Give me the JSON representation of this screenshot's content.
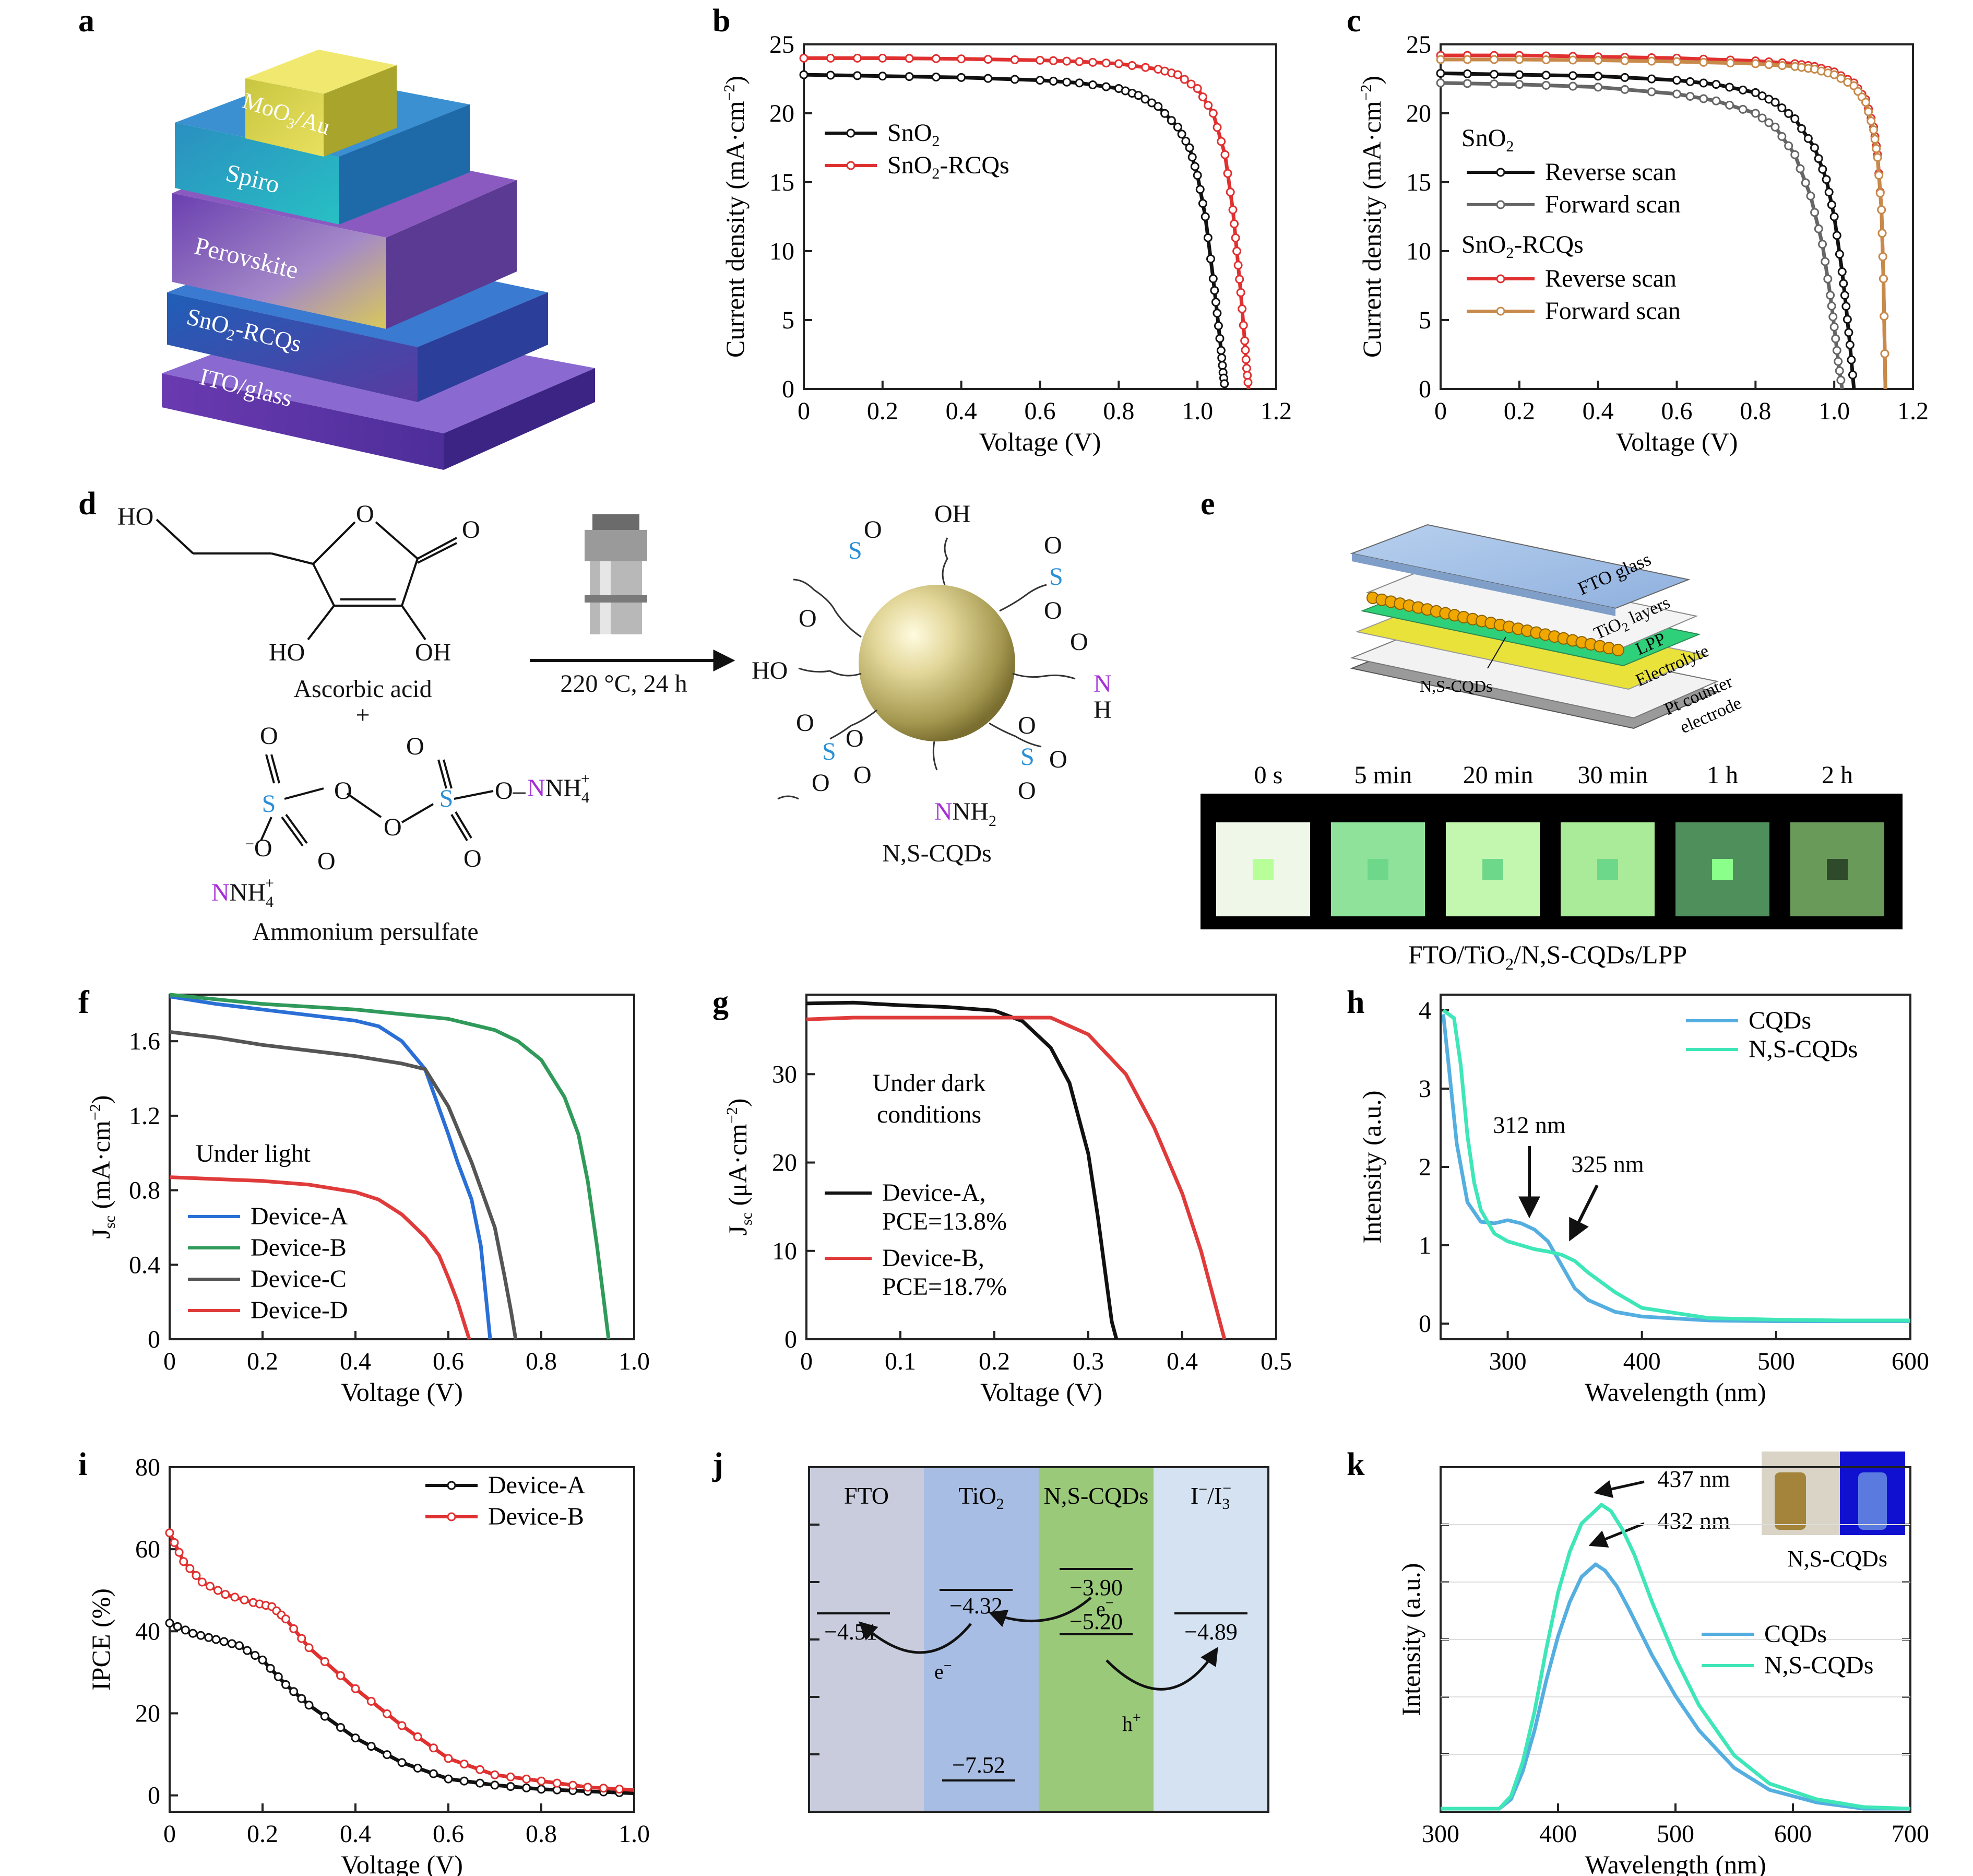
{
  "panels": {
    "a": {
      "letter": "a",
      "layers": [
        "MoO",
        "3",
        "/Au",
        "Spiro",
        "Perovskite",
        "SnO",
        "2",
        "-RCQs",
        "ITO/glass"
      ]
    },
    "b": {
      "letter": "b"
    },
    "c": {
      "letter": "c"
    },
    "d": {
      "letter": "d",
      "reactant1": "Ascorbic acid",
      "plus": "+",
      "reactant2": "Ammonium persulfate",
      "conditions": "220 °C, 24 h",
      "product": "N,S-CQDs",
      "atoms": {
        "HO": "HO",
        "OH": "OH",
        "O": "O",
        "S": "S",
        "N": "N",
        "NH4": "NH",
        "H": "H",
        "NH2": "NH",
        "two": "2",
        "four": "4",
        "plus_sup": "+",
        "minus_sup": "−",
        "dash": "–"
      }
    },
    "e": {
      "letter": "e",
      "layers": [
        "FTO glass",
        "TiO",
        "2",
        " layers",
        "LPP",
        "Electrolyte",
        "Pt counter",
        "electrode",
        "N,S-CQDs"
      ],
      "times": [
        "0 s",
        "5 min",
        "20 min",
        "30 min",
        "1 h",
        "2 h"
      ],
      "caption_parts": [
        "FTO/TiO",
        "2",
        "/N,S-CQDs/LPP"
      ],
      "swatch_colors": [
        "#eef7e8",
        "#8fe29a",
        "#c3f7b0",
        "#aaeb9a",
        "#4f8f5b",
        "#6a9a5a"
      ]
    },
    "f": {
      "letter": "f",
      "annotation": "Under light"
    },
    "g": {
      "letter": "g",
      "annotation_lines": [
        "Under dark",
        "conditions"
      ]
    },
    "h": {
      "letter": "h",
      "annotations": [
        "312 nm",
        "325 nm"
      ]
    },
    "i": {
      "letter": "i"
    },
    "j": {
      "letter": "j",
      "columns": [
        "FTO",
        "TiO",
        "2",
        "N,S-CQDs",
        "I",
        "−",
        "/I",
        "3",
        "−"
      ],
      "levels": [
        "−4.51",
        "−4.32",
        "−3.90",
        "−5.20",
        "−4.89",
        "−7.52"
      ],
      "carriers": [
        "e",
        "−",
        "e",
        "−",
        "h",
        "+"
      ],
      "colors": {
        "fto": "#c8ccdc",
        "tio2": "#a8bde3",
        "cqd": "#9ac97a",
        "electrolyte": "#d5e2f2"
      }
    },
    "k": {
      "letter": "k",
      "annotations": [
        "437 nm",
        "432 nm"
      ],
      "inset_label": "N,S-CQDs"
    }
  },
  "chart_data": [
    {
      "panel": "b",
      "type": "line",
      "xlabel": "Voltage (V)",
      "ylabel_parts": [
        "Current density (mA·cm",
        "−2",
        ")"
      ],
      "xlim": [
        0,
        1.2
      ],
      "ylim": [
        0,
        25
      ],
      "xticks": [
        "0",
        "0.2",
        "0.4",
        "0.6",
        "0.8",
        "1.0",
        "1.2"
      ],
      "yticks": [
        "0",
        "5",
        "10",
        "15",
        "20",
        "25"
      ],
      "legend": "upper-left",
      "series": [
        {
          "name_parts": [
            "SnO",
            "2",
            ""
          ],
          "color": "#111111",
          "marker": true,
          "x": [
            0,
            0.2,
            0.4,
            0.6,
            0.7,
            0.8,
            0.85,
            0.9,
            0.95,
            0.98,
            1.0,
            1.02,
            1.04,
            1.05,
            1.06,
            1.065,
            1.07
          ],
          "y": [
            22.8,
            22.7,
            22.6,
            22.4,
            22.2,
            21.8,
            21.3,
            20.5,
            19.0,
            17.5,
            15.5,
            12.5,
            8.0,
            5.5,
            2.8,
            1.2,
            0
          ]
        },
        {
          "name_parts": [
            "SnO",
            "2",
            "-RCQs"
          ],
          "color": "#e03030",
          "marker": true,
          "x": [
            0,
            0.2,
            0.4,
            0.6,
            0.7,
            0.8,
            0.9,
            0.95,
            1.0,
            1.04,
            1.07,
            1.09,
            1.1,
            1.11,
            1.12,
            1.125,
            1.13
          ],
          "y": [
            24.0,
            24.0,
            23.95,
            23.85,
            23.75,
            23.6,
            23.2,
            22.8,
            21.8,
            20.0,
            17.0,
            13.0,
            10.0,
            7.0,
            3.5,
            1.5,
            0
          ]
        }
      ]
    },
    {
      "panel": "c",
      "type": "line",
      "xlabel": "Voltage (V)",
      "ylabel_parts": [
        "Current density (mA·cm",
        "−2",
        ")"
      ],
      "xlim": [
        0,
        1.2
      ],
      "ylim": [
        0,
        25
      ],
      "xticks": [
        "0",
        "0.2",
        "0.4",
        "0.6",
        "0.8",
        "1.0",
        "1.2"
      ],
      "yticks": [
        "0",
        "5",
        "10",
        "15",
        "20",
        "25"
      ],
      "legend_groups": [
        {
          "title_parts": [
            "SnO",
            "2",
            ""
          ],
          "entries": [
            "Reverse scan",
            "Forward scan"
          ]
        },
        {
          "title_parts": [
            "SnO",
            "2",
            "-RCQs"
          ],
          "entries": [
            "Reverse scan",
            "Forward scan"
          ]
        }
      ],
      "series": [
        {
          "name": "Reverse scan",
          "group": "SnO2",
          "color": "#111111",
          "marker": true,
          "x": [
            0,
            0.2,
            0.4,
            0.6,
            0.7,
            0.8,
            0.85,
            0.9,
            0.95,
            0.98,
            1.0,
            1.02,
            1.03,
            1.04,
            1.05
          ],
          "y": [
            22.9,
            22.8,
            22.7,
            22.4,
            22.1,
            21.5,
            20.8,
            19.6,
            17.5,
            15.2,
            12.5,
            8.5,
            6.0,
            3.2,
            0
          ]
        },
        {
          "name": "Forward scan",
          "group": "SnO2",
          "color": "#666666",
          "marker": true,
          "x": [
            0,
            0.2,
            0.4,
            0.6,
            0.7,
            0.8,
            0.85,
            0.9,
            0.94,
            0.97,
            0.99,
            1.0,
            1.01,
            1.02
          ],
          "y": [
            22.2,
            22.1,
            21.9,
            21.4,
            20.9,
            20.0,
            19.0,
            17.0,
            14.0,
            10.5,
            6.8,
            4.5,
            2.0,
            0
          ]
        },
        {
          "name": "Reverse scan",
          "group": "SnO2-RCQs",
          "color": "#e03030",
          "marker": true,
          "x": [
            0,
            0.2,
            0.4,
            0.6,
            0.8,
            0.9,
            0.95,
            1.0,
            1.05,
            1.08,
            1.1,
            1.11,
            1.12,
            1.125,
            1.13
          ],
          "y": [
            24.2,
            24.2,
            24.1,
            24.0,
            23.8,
            23.6,
            23.4,
            23.0,
            22.2,
            21.0,
            19.0,
            17.0,
            13.0,
            8.0,
            0
          ]
        },
        {
          "name": "Forward scan",
          "group": "SnO2-RCQs",
          "color": "#c78a4a",
          "marker": true,
          "x": [
            0,
            0.2,
            0.4,
            0.6,
            0.8,
            0.9,
            0.95,
            1.0,
            1.05,
            1.08,
            1.1,
            1.11,
            1.12,
            1.125,
            1.13
          ],
          "y": [
            23.9,
            23.9,
            23.85,
            23.75,
            23.6,
            23.4,
            23.2,
            22.8,
            22.0,
            20.8,
            18.8,
            16.8,
            13.0,
            8.0,
            0
          ]
        }
      ]
    },
    {
      "panel": "f",
      "type": "line",
      "xlabel": "Voltage (V)",
      "ylabel_parts": [
        "J",
        "sc",
        " (mA·cm",
        "−2",
        ")"
      ],
      "xlim": [
        0,
        1.0
      ],
      "ylim": [
        0,
        1.85
      ],
      "xticks": [
        "0",
        "0.2",
        "0.4",
        "0.6",
        "0.8",
        "1.0"
      ],
      "yticks": [
        "0",
        "0.4",
        "0.8",
        "1.2",
        "1.6"
      ],
      "series": [
        {
          "name": "Device-A",
          "color": "#2a6fd6",
          "x": [
            0,
            0.1,
            0.2,
            0.3,
            0.4,
            0.45,
            0.5,
            0.55,
            0.6,
            0.62,
            0.65,
            0.67,
            0.68,
            0.69
          ],
          "y": [
            1.84,
            1.8,
            1.77,
            1.74,
            1.71,
            1.68,
            1.6,
            1.45,
            1.1,
            0.95,
            0.75,
            0.5,
            0.25,
            0
          ]
        },
        {
          "name": "Device-B",
          "color": "#2f9a5a",
          "x": [
            0,
            0.2,
            0.4,
            0.6,
            0.7,
            0.75,
            0.8,
            0.85,
            0.88,
            0.9,
            0.92,
            0.935,
            0.945
          ],
          "y": [
            1.85,
            1.8,
            1.77,
            1.72,
            1.66,
            1.6,
            1.5,
            1.3,
            1.1,
            0.85,
            0.5,
            0.2,
            0
          ]
        },
        {
          "name": "Device-C",
          "color": "#555555",
          "x": [
            0,
            0.1,
            0.2,
            0.3,
            0.4,
            0.5,
            0.55,
            0.6,
            0.65,
            0.7,
            0.72,
            0.735,
            0.745
          ],
          "y": [
            1.65,
            1.62,
            1.58,
            1.55,
            1.52,
            1.48,
            1.45,
            1.25,
            0.95,
            0.6,
            0.35,
            0.15,
            0
          ]
        },
        {
          "name": "Device-D",
          "color": "#e03b3b",
          "x": [
            0,
            0.1,
            0.2,
            0.3,
            0.4,
            0.45,
            0.5,
            0.55,
            0.58,
            0.6,
            0.62,
            0.635,
            0.645
          ],
          "y": [
            0.87,
            0.86,
            0.85,
            0.83,
            0.79,
            0.75,
            0.67,
            0.55,
            0.45,
            0.33,
            0.2,
            0.08,
            0
          ]
        }
      ]
    },
    {
      "panel": "g",
      "type": "line",
      "xlabel": "Voltage (V)",
      "ylabel_parts": [
        "J",
        "sc",
        " (μA·cm",
        "−2",
        ")"
      ],
      "xlim": [
        0,
        0.5
      ],
      "ylim": [
        0,
        39
      ],
      "xticks": [
        "0",
        "0.1",
        "0.2",
        "0.3",
        "0.4",
        "0.5"
      ],
      "yticks": [
        "0",
        "10",
        "20",
        "30"
      ],
      "series": [
        {
          "name_lines": [
            "Device-A,",
            "PCE=13.8%"
          ],
          "color": "#111111",
          "x": [
            0,
            0.05,
            0.1,
            0.15,
            0.2,
            0.23,
            0.26,
            0.28,
            0.3,
            0.31,
            0.32,
            0.325,
            0.33
          ],
          "y": [
            38,
            38.1,
            37.8,
            37.6,
            37.2,
            36.0,
            33.0,
            29.0,
            21.0,
            14.0,
            6.0,
            2.0,
            0
          ]
        },
        {
          "name_lines": [
            "Device-B,",
            "PCE=18.7%"
          ],
          "color": "#e03b3b",
          "x": [
            0,
            0.05,
            0.1,
            0.2,
            0.26,
            0.3,
            0.34,
            0.37,
            0.4,
            0.42,
            0.43,
            0.44,
            0.445
          ],
          "y": [
            36.2,
            36.4,
            36.4,
            36.4,
            36.4,
            34.5,
            30.0,
            24.0,
            16.5,
            10.0,
            6.0,
            2.0,
            0
          ]
        }
      ]
    },
    {
      "panel": "h",
      "type": "line",
      "xlabel": "Wavelength (nm)",
      "ylabel": "Intensity (a.u.)",
      "xlim": [
        250,
        600
      ],
      "ylim": [
        -0.2,
        4.2
      ],
      "xticks": [
        "300",
        "400",
        "500",
        "600"
      ],
      "yticks": [
        "0",
        "1",
        "2",
        "3",
        "4"
      ],
      "series": [
        {
          "name": "CQDs",
          "color": "#55aee0",
          "x": [
            252,
            256,
            262,
            270,
            280,
            290,
            300,
            310,
            320,
            330,
            340,
            350,
            360,
            380,
            400,
            450,
            500,
            550,
            600
          ],
          "y": [
            3.95,
            3.3,
            2.3,
            1.55,
            1.3,
            1.28,
            1.32,
            1.28,
            1.2,
            1.05,
            0.75,
            0.45,
            0.3,
            0.15,
            0.09,
            0.04,
            0.03,
            0.03,
            0.03
          ]
        },
        {
          "name": "N,S-CQDs",
          "color": "#3ee6b8",
          "x": [
            252,
            260,
            265,
            270,
            275,
            280,
            290,
            300,
            310,
            320,
            330,
            340,
            350,
            360,
            380,
            400,
            450,
            500,
            550,
            600
          ],
          "y": [
            4.0,
            3.9,
            3.3,
            2.4,
            1.8,
            1.45,
            1.15,
            1.05,
            1.0,
            0.95,
            0.92,
            0.88,
            0.8,
            0.65,
            0.4,
            0.2,
            0.07,
            0.05,
            0.04,
            0.04
          ]
        }
      ]
    },
    {
      "panel": "i",
      "type": "line",
      "xlabel": "Voltage (V)",
      "ylabel": "IPCE (%)",
      "xlim": [
        0,
        1.0
      ],
      "ylim": [
        -4,
        80
      ],
      "xticks": [
        "0",
        "0.2",
        "0.4",
        "0.6",
        "0.8",
        "1.0"
      ],
      "yticks": [
        "0",
        "20",
        "40",
        "60",
        "80"
      ],
      "series": [
        {
          "name": "Device-A",
          "color": "#111111",
          "marker": true,
          "x": [
            0,
            0.05,
            0.1,
            0.15,
            0.2,
            0.25,
            0.3,
            0.4,
            0.5,
            0.6,
            0.7,
            0.8,
            0.9,
            1.0
          ],
          "y": [
            42,
            39.5,
            38,
            36.5,
            33,
            27,
            22,
            14,
            8,
            4,
            2.5,
            1.5,
            1,
            0.5
          ]
        },
        {
          "name": "Device-B",
          "color": "#e03030",
          "marker": true,
          "x": [
            0,
            0.03,
            0.07,
            0.12,
            0.18,
            0.22,
            0.25,
            0.3,
            0.4,
            0.5,
            0.6,
            0.7,
            0.8,
            0.9,
            1.0
          ],
          "y": [
            64,
            57,
            52,
            49,
            47,
            46,
            43,
            36,
            26,
            17,
            9,
            5,
            3.5,
            2,
            1.3
          ]
        }
      ]
    },
    {
      "panel": "k",
      "type": "line",
      "xlabel": "Wavelength (nm)",
      "ylabel": "Intensity (a.u.)",
      "xlim": [
        300,
        700
      ],
      "ylim": [
        0,
        1.1
      ],
      "xticks": [
        "300",
        "400",
        "500",
        "600",
        "700"
      ],
      "series": [
        {
          "name": "CQDs",
          "color": "#55aee0",
          "x": [
            300,
            350,
            360,
            370,
            380,
            390,
            400,
            410,
            420,
            432,
            440,
            450,
            460,
            480,
            500,
            520,
            550,
            580,
            620,
            660,
            700
          ],
          "y": [
            0.01,
            0.01,
            0.04,
            0.13,
            0.26,
            0.42,
            0.56,
            0.67,
            0.75,
            0.79,
            0.77,
            0.72,
            0.65,
            0.5,
            0.37,
            0.26,
            0.14,
            0.07,
            0.03,
            0.01,
            0.01
          ]
        },
        {
          "name": "N,S-CQDs",
          "color": "#3ee6b8",
          "x": [
            300,
            350,
            360,
            370,
            380,
            390,
            400,
            410,
            420,
            437,
            445,
            455,
            465,
            480,
            500,
            520,
            550,
            580,
            620,
            660,
            700
          ],
          "y": [
            0.01,
            0.01,
            0.05,
            0.16,
            0.32,
            0.52,
            0.7,
            0.83,
            0.92,
            0.98,
            0.96,
            0.9,
            0.82,
            0.67,
            0.49,
            0.34,
            0.18,
            0.09,
            0.04,
            0.015,
            0.01
          ]
        }
      ]
    }
  ]
}
